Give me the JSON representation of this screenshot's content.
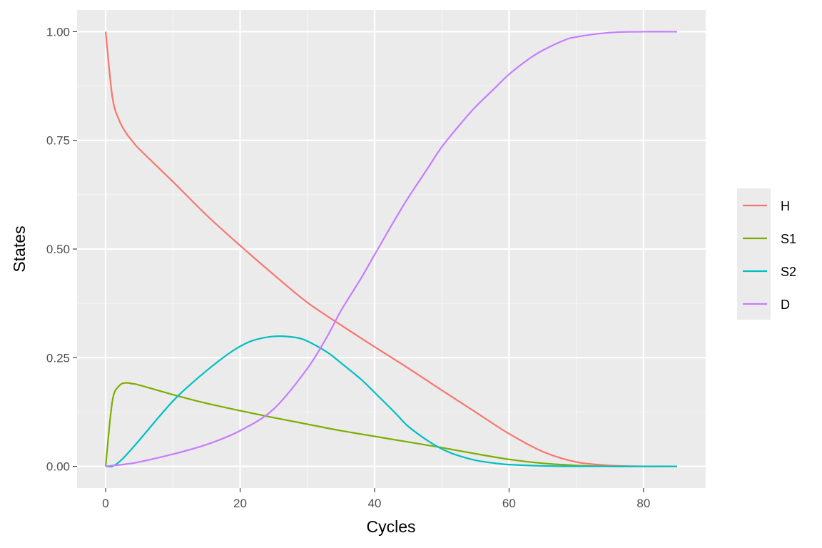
{
  "theme": {
    "panel_background": "#ebebeb",
    "major_grid": "#ffffff",
    "minor_grid": "#f5f5f5",
    "tick_color": "#333333",
    "tick_label_color": "#4d4d4d",
    "legend_background": "#ebebeb"
  },
  "chart_data": {
    "type": "line",
    "xlabel": "Cycles",
    "ylabel": "States",
    "xlim": [
      -4.25,
      89.25
    ],
    "ylim": [
      -0.05,
      1.05
    ],
    "x_ticks": [
      0,
      20,
      40,
      60,
      80
    ],
    "x_tick_labels": [
      "0",
      "20",
      "40",
      "60",
      "80"
    ],
    "y_ticks": [
      0,
      0.25,
      0.5,
      0.75,
      1
    ],
    "y_tick_labels": [
      "0.00",
      "0.25",
      "0.50",
      "0.75",
      "1.00"
    ],
    "grid": true,
    "legend_position": "right",
    "series": [
      {
        "name": "H",
        "color": "#F8766D",
        "x": [
          0,
          1,
          2,
          3,
          4,
          5,
          10,
          15,
          20,
          25,
          30,
          35,
          40,
          45,
          50,
          55,
          60,
          65,
          70,
          75,
          80,
          85
        ],
        "y": [
          1.0,
          0.85,
          0.797,
          0.768,
          0.748,
          0.73,
          0.655,
          0.578,
          0.508,
          0.441,
          0.377,
          0.325,
          0.275,
          0.226,
          0.175,
          0.125,
          0.075,
          0.034,
          0.01,
          0.002,
          0.0,
          0.0
        ]
      },
      {
        "name": "S1",
        "color": "#7CAE00",
        "x": [
          0,
          1,
          2,
          3,
          4,
          5,
          10,
          15,
          20,
          25,
          30,
          35,
          40,
          45,
          50,
          55,
          60,
          65,
          70,
          75,
          80,
          85
        ],
        "y": [
          0.0,
          0.15,
          0.185,
          0.192,
          0.19,
          0.187,
          0.165,
          0.145,
          0.128,
          0.112,
          0.097,
          0.082,
          0.069,
          0.056,
          0.043,
          0.029,
          0.016,
          0.007,
          0.002,
          0.0,
          0.0,
          0.0
        ]
      },
      {
        "name": "S2",
        "color": "#00BFC4",
        "x": [
          0,
          1,
          2,
          3,
          5,
          8,
          10,
          12,
          15,
          18,
          20,
          22,
          25,
          28,
          30,
          33,
          35,
          38,
          40,
          43,
          45,
          48,
          50,
          52,
          55,
          58,
          60,
          65,
          70,
          75,
          80,
          85
        ],
        "y": [
          0.0,
          0.0,
          0.01,
          0.025,
          0.06,
          0.115,
          0.15,
          0.18,
          0.22,
          0.256,
          0.276,
          0.29,
          0.299,
          0.297,
          0.288,
          0.262,
          0.238,
          0.2,
          0.17,
          0.124,
          0.092,
          0.058,
          0.04,
          0.027,
          0.014,
          0.007,
          0.004,
          0.001,
          0.0,
          0.0,
          0.0,
          0.0
        ]
      },
      {
        "name": "D",
        "color": "#C77CFF",
        "x": [
          0,
          3,
          5,
          10,
          15,
          20,
          25,
          30,
          33,
          35,
          38,
          40,
          43,
          45,
          48,
          50,
          53,
          55,
          58,
          60,
          63,
          65,
          68,
          70,
          75,
          80,
          85
        ],
        "y": [
          0.0,
          0.005,
          0.01,
          0.028,
          0.05,
          0.082,
          0.132,
          0.225,
          0.3,
          0.358,
          0.433,
          0.487,
          0.567,
          0.618,
          0.688,
          0.735,
          0.792,
          0.827,
          0.872,
          0.902,
          0.938,
          0.957,
          0.979,
          0.988,
          0.998,
          1.0,
          1.0
        ]
      }
    ]
  }
}
